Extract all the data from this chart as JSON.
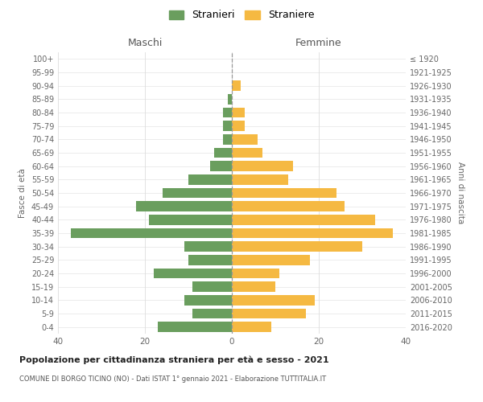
{
  "age_groups": [
    "0-4",
    "5-9",
    "10-14",
    "15-19",
    "20-24",
    "25-29",
    "30-34",
    "35-39",
    "40-44",
    "45-49",
    "50-54",
    "55-59",
    "60-64",
    "65-69",
    "70-74",
    "75-79",
    "80-84",
    "85-89",
    "90-94",
    "95-99",
    "100+"
  ],
  "birth_years": [
    "2016-2020",
    "2011-2015",
    "2006-2010",
    "2001-2005",
    "1996-2000",
    "1991-1995",
    "1986-1990",
    "1981-1985",
    "1976-1980",
    "1971-1975",
    "1966-1970",
    "1961-1965",
    "1956-1960",
    "1951-1955",
    "1946-1950",
    "1941-1945",
    "1936-1940",
    "1931-1935",
    "1926-1930",
    "1921-1925",
    "≤ 1920"
  ],
  "maschi": [
    17,
    9,
    11,
    9,
    18,
    10,
    11,
    37,
    19,
    22,
    16,
    10,
    5,
    4,
    2,
    2,
    2,
    1,
    0,
    0,
    0
  ],
  "femmine": [
    9,
    17,
    19,
    10,
    11,
    18,
    30,
    37,
    33,
    26,
    24,
    13,
    14,
    7,
    6,
    3,
    3,
    0,
    2,
    0,
    0
  ],
  "color_maschi": "#6a9e5e",
  "color_femmine": "#f5b942",
  "title": "Popolazione per cittadinanza straniera per età e sesso - 2021",
  "subtitle": "COMUNE DI BORGO TICINO (NO) - Dati ISTAT 1° gennaio 2021 - Elaborazione TUTTITALIA.IT",
  "xlabel_left": "Maschi",
  "xlabel_right": "Femmine",
  "ylabel_left": "Fasce di età",
  "ylabel_right": "Anni di nascita",
  "legend_maschi": "Stranieri",
  "legend_femmine": "Straniere",
  "xlim": 40,
  "background_color": "#ffffff",
  "grid_color": "#dddddd"
}
